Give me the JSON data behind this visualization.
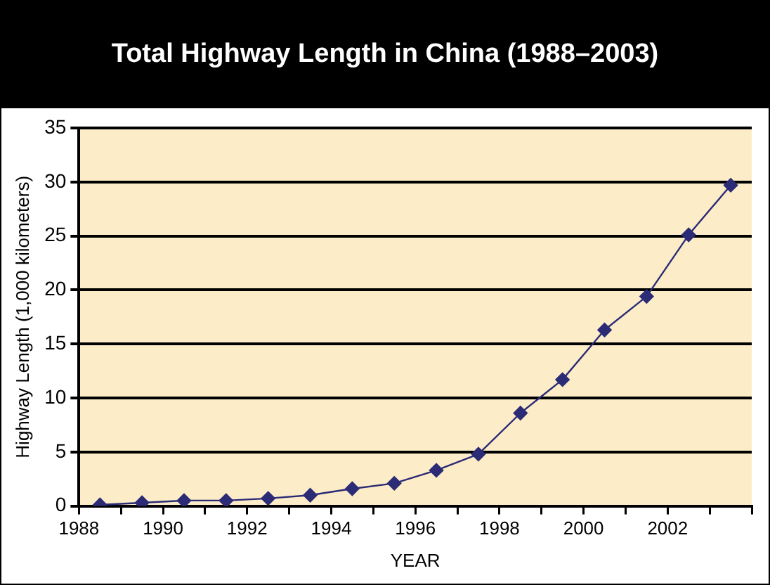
{
  "chart_data": {
    "type": "line",
    "title": "Total Highway Length in China (1988–2003)",
    "xlabel": "YEAR",
    "ylabel": "Highway Length (1,000 kilometers)",
    "x": [
      1988.5,
      1989.5,
      1990.5,
      1991.5,
      1992.5,
      1993.5,
      1994.5,
      1995.5,
      1996.5,
      1997.5,
      1998.5,
      1999.5,
      2000.5,
      2001.5,
      2002.5,
      2003.5
    ],
    "series": [
      {
        "color": "#2b2b76",
        "values": [
          0.1,
          0.3,
          0.5,
          0.5,
          0.7,
          1.0,
          1.6,
          2.1,
          3.3,
          4.8,
          8.6,
          11.7,
          16.3,
          19.4,
          25.1,
          29.7
        ]
      }
    ],
    "xlim": [
      1988,
      2004
    ],
    "xticks": [
      1988,
      {
        "value": 1989,
        "label": null
      },
      1990,
      {
        "value": 1991,
        "label": null
      },
      1992,
      {
        "value": 1993,
        "label": null
      },
      1994,
      {
        "value": 1995,
        "label": null
      },
      1996,
      {
        "value": 1997,
        "label": null
      },
      1998,
      {
        "value": 1999,
        "label": null
      },
      2000,
      {
        "value": 2001,
        "label": null
      },
      2002,
      {
        "value": 2003,
        "label": null
      },
      {
        "value": 2004,
        "label": null
      }
    ],
    "ylim": [
      0,
      35
    ],
    "yticks": [
      0,
      5,
      10,
      15,
      20,
      25,
      30,
      35
    ],
    "grid": "y",
    "legend": false,
    "marker": "diamond",
    "line_style": "solid"
  }
}
